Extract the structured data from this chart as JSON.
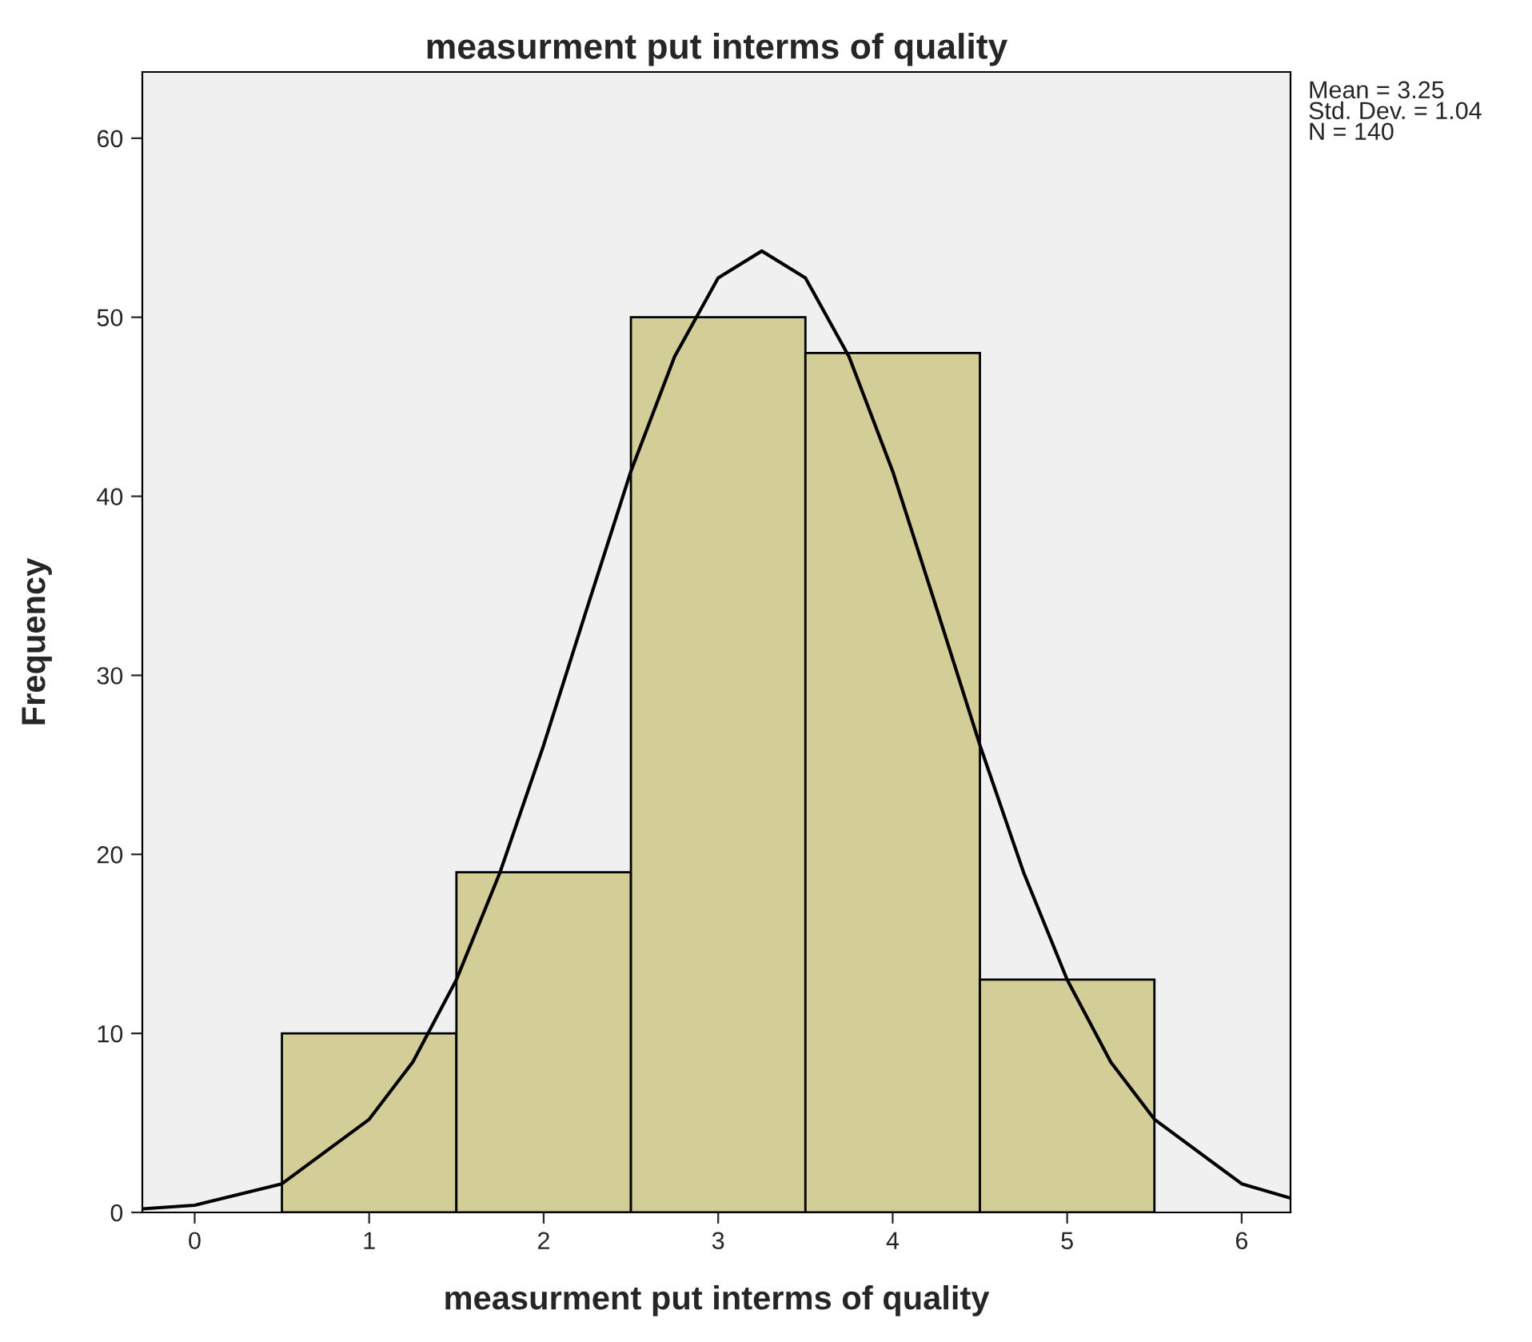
{
  "chart_data": {
    "type": "histogram",
    "title": "measurment put interms of quality",
    "xlabel": "measurment put interms of quality",
    "ylabel": "Frequency",
    "bins": [
      0.5,
      1.5,
      2.5,
      3.5,
      4.5,
      5.5
    ],
    "values": [
      10,
      19,
      50,
      48,
      13
    ],
    "color": "#d3ce97",
    "series": [
      {
        "type": "line",
        "color": "#000000",
        "x": [
          -0.3,
          0,
          0.5,
          1,
          1.25,
          1.5,
          1.75,
          2,
          2.25,
          2.5,
          2.75,
          3,
          3.25,
          3.5,
          3.75,
          4,
          4.25,
          4.5,
          4.75,
          5,
          5.25,
          5.5,
          6,
          6.28
        ],
        "values": [
          0.2,
          0.4,
          1.6,
          5.2,
          8.4,
          13.0,
          19.0,
          26.1,
          33.8,
          41.4,
          47.8,
          52.2,
          53.7,
          52.2,
          47.8,
          41.4,
          33.8,
          26.1,
          19.0,
          13.0,
          8.4,
          5.2,
          1.6,
          0.8
        ]
      }
    ],
    "xlim": [
      -0.3,
      6.28
    ],
    "xticks": [
      0,
      1,
      2,
      3,
      4,
      5,
      6
    ],
    "ylim": [
      0,
      63.7
    ],
    "yticks": [
      0,
      10,
      20,
      30,
      40,
      50,
      60
    ],
    "grid": false,
    "legend": false,
    "annotations": [
      "Mean = 3.25",
      "Std. Dev. = 1.04",
      "N = 140"
    ]
  }
}
